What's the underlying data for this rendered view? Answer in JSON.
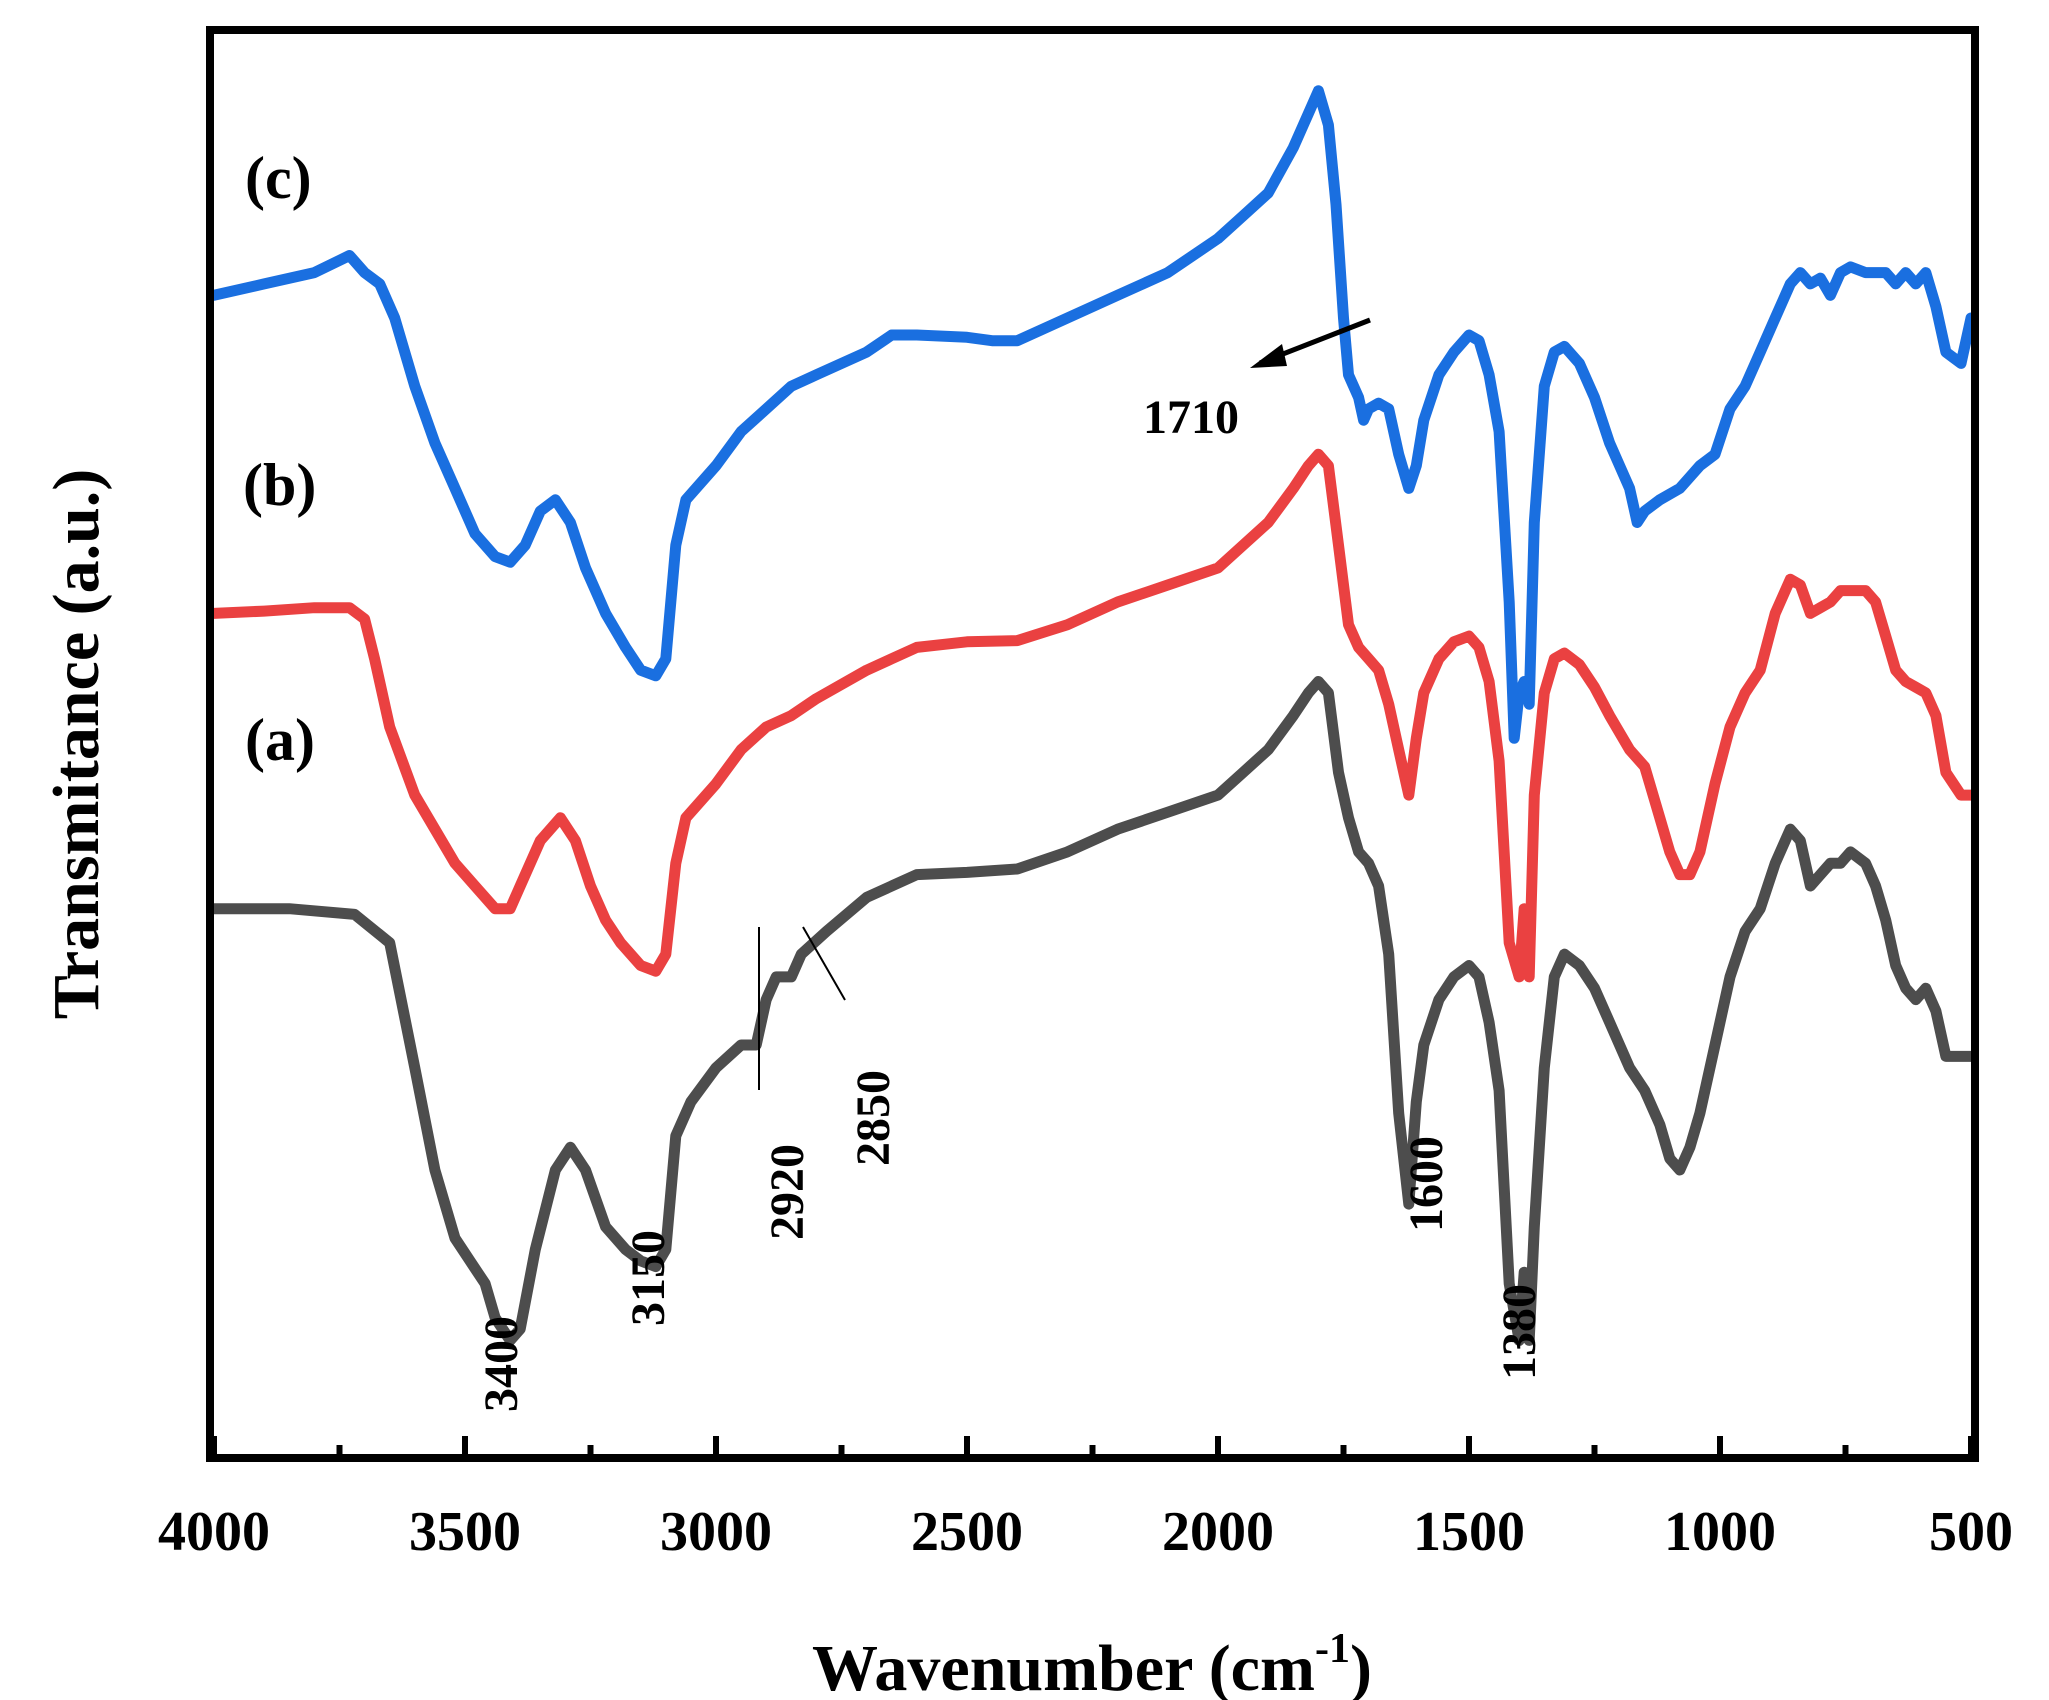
{
  "chart_data": {
    "type": "line",
    "xlabel": "Wavenumber (cm",
    "xlabel_sup": "-1",
    "xlabel_close": ")",
    "ylabel": "Transmitance (a.u.)",
    "xlim": [
      4000,
      500
    ],
    "x_reversed": true,
    "x_ticks": [
      4000,
      3500,
      3000,
      2500,
      2000,
      1500,
      1000,
      500
    ],
    "x_tick_labels": [
      "4000",
      "3500",
      "3000",
      "2500",
      "2000",
      "1500",
      "1000",
      "500"
    ],
    "y_ticks_shown": false,
    "grid": false,
    "legend": "none",
    "series": [
      {
        "name": "(a)",
        "color": "#4d4d4d",
        "offset": 0,
        "points": [
          [
            4000,
            78
          ],
          [
            3850,
            78
          ],
          [
            3720,
            77.5
          ],
          [
            3650,
            75
          ],
          [
            3600,
            64
          ],
          [
            3560,
            55
          ],
          [
            3520,
            49
          ],
          [
            3490,
            47
          ],
          [
            3460,
            45
          ],
          [
            3440,
            42
          ],
          [
            3410,
            40
          ],
          [
            3390,
            41
          ],
          [
            3360,
            48
          ],
          [
            3320,
            55
          ],
          [
            3290,
            57
          ],
          [
            3260,
            55
          ],
          [
            3220,
            50
          ],
          [
            3180,
            48
          ],
          [
            3150,
            47
          ],
          [
            3120,
            46.5
          ],
          [
            3100,
            48
          ],
          [
            3080,
            58
          ],
          [
            3050,
            61
          ],
          [
            3000,
            64
          ],
          [
            2950,
            66
          ],
          [
            2920,
            66
          ],
          [
            2900,
            70
          ],
          [
            2880,
            72
          ],
          [
            2850,
            72
          ],
          [
            2830,
            74
          ],
          [
            2780,
            76
          ],
          [
            2700,
            79
          ],
          [
            2600,
            81
          ],
          [
            2500,
            81.2
          ],
          [
            2400,
            81.5
          ],
          [
            2300,
            83
          ],
          [
            2200,
            85
          ],
          [
            2100,
            86.5
          ],
          [
            2000,
            88
          ],
          [
            1950,
            90
          ],
          [
            1900,
            92
          ],
          [
            1850,
            95
          ],
          [
            1820,
            97
          ],
          [
            1800,
            98
          ],
          [
            1780,
            97
          ],
          [
            1760,
            90
          ],
          [
            1740,
            86
          ],
          [
            1720,
            83
          ],
          [
            1700,
            82
          ],
          [
            1680,
            80
          ],
          [
            1660,
            74
          ],
          [
            1640,
            60
          ],
          [
            1620,
            52
          ],
          [
            1605,
            61
          ],
          [
            1590,
            66
          ],
          [
            1560,
            70
          ],
          [
            1530,
            72
          ],
          [
            1500,
            73
          ],
          [
            1480,
            72
          ],
          [
            1460,
            68
          ],
          [
            1440,
            62
          ],
          [
            1420,
            45
          ],
          [
            1400,
            40
          ],
          [
            1390,
            46
          ],
          [
            1380,
            40
          ],
          [
            1370,
            50
          ],
          [
            1350,
            64
          ],
          [
            1330,
            72
          ],
          [
            1310,
            74
          ],
          [
            1280,
            73
          ],
          [
            1250,
            71
          ],
          [
            1220,
            68
          ],
          [
            1180,
            64
          ],
          [
            1150,
            62
          ],
          [
            1120,
            59
          ],
          [
            1100,
            56
          ],
          [
            1080,
            55
          ],
          [
            1060,
            57
          ],
          [
            1040,
            60
          ],
          [
            1010,
            66
          ],
          [
            980,
            72
          ],
          [
            950,
            76
          ],
          [
            920,
            78
          ],
          [
            890,
            82
          ],
          [
            860,
            85
          ],
          [
            840,
            84
          ],
          [
            820,
            80
          ],
          [
            800,
            81
          ],
          [
            780,
            82
          ],
          [
            760,
            82
          ],
          [
            740,
            83
          ],
          [
            710,
            82
          ],
          [
            690,
            80
          ],
          [
            670,
            77
          ],
          [
            650,
            73
          ],
          [
            630,
            71
          ],
          [
            610,
            70
          ],
          [
            590,
            71
          ],
          [
            570,
            69
          ],
          [
            550,
            65
          ],
          [
            520,
            65
          ],
          [
            500,
            65
          ]
        ]
      },
      {
        "name": "(b)",
        "color": "#ea4141",
        "offset": 0,
        "points": [
          [
            4000,
            104
          ],
          [
            3900,
            104.2
          ],
          [
            3800,
            104.5
          ],
          [
            3730,
            104.5
          ],
          [
            3700,
            103.5
          ],
          [
            3680,
            100
          ],
          [
            3650,
            94
          ],
          [
            3600,
            88
          ],
          [
            3560,
            85
          ],
          [
            3520,
            82
          ],
          [
            3480,
            80
          ],
          [
            3440,
            78
          ],
          [
            3410,
            78
          ],
          [
            3390,
            80
          ],
          [
            3350,
            84
          ],
          [
            3310,
            86
          ],
          [
            3280,
            84
          ],
          [
            3250,
            80
          ],
          [
            3220,
            77
          ],
          [
            3190,
            75
          ],
          [
            3150,
            73
          ],
          [
            3120,
            72.5
          ],
          [
            3100,
            74
          ],
          [
            3080,
            82
          ],
          [
            3060,
            86
          ],
          [
            3000,
            89
          ],
          [
            2950,
            92
          ],
          [
            2900,
            94
          ],
          [
            2850,
            95
          ],
          [
            2800,
            96.5
          ],
          [
            2700,
            99
          ],
          [
            2650,
            100
          ],
          [
            2600,
            101
          ],
          [
            2500,
            101.5
          ],
          [
            2400,
            101.6
          ],
          [
            2300,
            103
          ],
          [
            2200,
            105
          ],
          [
            2100,
            106.5
          ],
          [
            2000,
            108
          ],
          [
            1950,
            110
          ],
          [
            1900,
            112
          ],
          [
            1850,
            115
          ],
          [
            1820,
            117
          ],
          [
            1800,
            118
          ],
          [
            1780,
            117
          ],
          [
            1760,
            110
          ],
          [
            1740,
            103
          ],
          [
            1720,
            101
          ],
          [
            1700,
            100
          ],
          [
            1680,
            99
          ],
          [
            1660,
            96
          ],
          [
            1640,
            92
          ],
          [
            1620,
            88
          ],
          [
            1605,
            93
          ],
          [
            1590,
            97
          ],
          [
            1560,
            100
          ],
          [
            1530,
            101.5
          ],
          [
            1500,
            102
          ],
          [
            1480,
            101
          ],
          [
            1460,
            98
          ],
          [
            1440,
            91
          ],
          [
            1420,
            75
          ],
          [
            1400,
            72
          ],
          [
            1390,
            78
          ],
          [
            1380,
            72
          ],
          [
            1370,
            88
          ],
          [
            1350,
            97
          ],
          [
            1330,
            100
          ],
          [
            1310,
            100.5
          ],
          [
            1280,
            99.5
          ],
          [
            1250,
            97.5
          ],
          [
            1220,
            95
          ],
          [
            1180,
            92
          ],
          [
            1150,
            90.5
          ],
          [
            1120,
            86
          ],
          [
            1100,
            83
          ],
          [
            1080,
            81
          ],
          [
            1060,
            81
          ],
          [
            1040,
            83
          ],
          [
            1010,
            89
          ],
          [
            980,
            94
          ],
          [
            950,
            97
          ],
          [
            920,
            99
          ],
          [
            890,
            104
          ],
          [
            860,
            107
          ],
          [
            840,
            106.5
          ],
          [
            820,
            104
          ],
          [
            800,
            104.5
          ],
          [
            780,
            105
          ],
          [
            760,
            106
          ],
          [
            740,
            106
          ],
          [
            710,
            106
          ],
          [
            690,
            105
          ],
          [
            670,
            102
          ],
          [
            650,
            99
          ],
          [
            630,
            98
          ],
          [
            610,
            97.5
          ],
          [
            590,
            97
          ],
          [
            570,
            95
          ],
          [
            550,
            90
          ],
          [
            520,
            88
          ],
          [
            500,
            88
          ]
        ]
      },
      {
        "name": "(c)",
        "color": "#1a6fe0",
        "offset": 0,
        "points": [
          [
            4000,
            132
          ],
          [
            3900,
            133
          ],
          [
            3800,
            134
          ],
          [
            3730,
            135.5
          ],
          [
            3700,
            134
          ],
          [
            3670,
            133
          ],
          [
            3640,
            130
          ],
          [
            3600,
            124
          ],
          [
            3560,
            119
          ],
          [
            3520,
            115
          ],
          [
            3480,
            111
          ],
          [
            3440,
            109
          ],
          [
            3410,
            108.5
          ],
          [
            3380,
            110
          ],
          [
            3350,
            113
          ],
          [
            3320,
            114
          ],
          [
            3290,
            112
          ],
          [
            3260,
            108
          ],
          [
            3220,
            104
          ],
          [
            3180,
            101
          ],
          [
            3150,
            99
          ],
          [
            3120,
            98.5
          ],
          [
            3100,
            100
          ],
          [
            3080,
            110
          ],
          [
            3060,
            114
          ],
          [
            3000,
            117
          ],
          [
            2950,
            120
          ],
          [
            2900,
            122
          ],
          [
            2850,
            124
          ],
          [
            2800,
            125
          ],
          [
            2700,
            127
          ],
          [
            2650,
            128.5
          ],
          [
            2600,
            128.5
          ],
          [
            2500,
            128.3
          ],
          [
            2450,
            128
          ],
          [
            2400,
            128
          ],
          [
            2300,
            130
          ],
          [
            2200,
            132
          ],
          [
            2100,
            134
          ],
          [
            2000,
            137
          ],
          [
            1950,
            139
          ],
          [
            1900,
            141
          ],
          [
            1850,
            145
          ],
          [
            1820,
            148
          ],
          [
            1800,
            150
          ],
          [
            1780,
            147
          ],
          [
            1765,
            140
          ],
          [
            1750,
            130
          ],
          [
            1740,
            125
          ],
          [
            1720,
            123
          ],
          [
            1710,
            121
          ],
          [
            1700,
            122
          ],
          [
            1680,
            122.5
          ],
          [
            1660,
            122
          ],
          [
            1640,
            118
          ],
          [
            1620,
            115
          ],
          [
            1605,
            117
          ],
          [
            1590,
            121
          ],
          [
            1560,
            125
          ],
          [
            1530,
            127
          ],
          [
            1500,
            128.5
          ],
          [
            1480,
            128
          ],
          [
            1460,
            125
          ],
          [
            1440,
            120
          ],
          [
            1420,
            105
          ],
          [
            1410,
            93
          ],
          [
            1400,
            97
          ],
          [
            1390,
            98
          ],
          [
            1380,
            96
          ],
          [
            1370,
            112
          ],
          [
            1350,
            124
          ],
          [
            1330,
            127
          ],
          [
            1310,
            127.5
          ],
          [
            1280,
            126
          ],
          [
            1250,
            123
          ],
          [
            1220,
            119
          ],
          [
            1200,
            117
          ],
          [
            1180,
            115
          ],
          [
            1165,
            112
          ],
          [
            1150,
            113
          ],
          [
            1120,
            114
          ],
          [
            1080,
            115
          ],
          [
            1060,
            116
          ],
          [
            1040,
            117
          ],
          [
            1010,
            118
          ],
          [
            980,
            122
          ],
          [
            950,
            124
          ],
          [
            920,
            127
          ],
          [
            890,
            130
          ],
          [
            860,
            133
          ],
          [
            840,
            134
          ],
          [
            820,
            133
          ],
          [
            800,
            133.5
          ],
          [
            780,
            132
          ],
          [
            760,
            134
          ],
          [
            740,
            134.5
          ],
          [
            710,
            134
          ],
          [
            690,
            134
          ],
          [
            670,
            134
          ],
          [
            650,
            133
          ],
          [
            630,
            134
          ],
          [
            610,
            133
          ],
          [
            590,
            134
          ],
          [
            570,
            131
          ],
          [
            550,
            127
          ],
          [
            520,
            126
          ],
          [
            500,
            130
          ]
        ]
      }
    ],
    "series_labels": [
      "(a)",
      "(b)",
      "(c)"
    ],
    "peak_labels": [
      "3400",
      "3150",
      "2920",
      "2850",
      "1600",
      "1380",
      "1710"
    ]
  }
}
